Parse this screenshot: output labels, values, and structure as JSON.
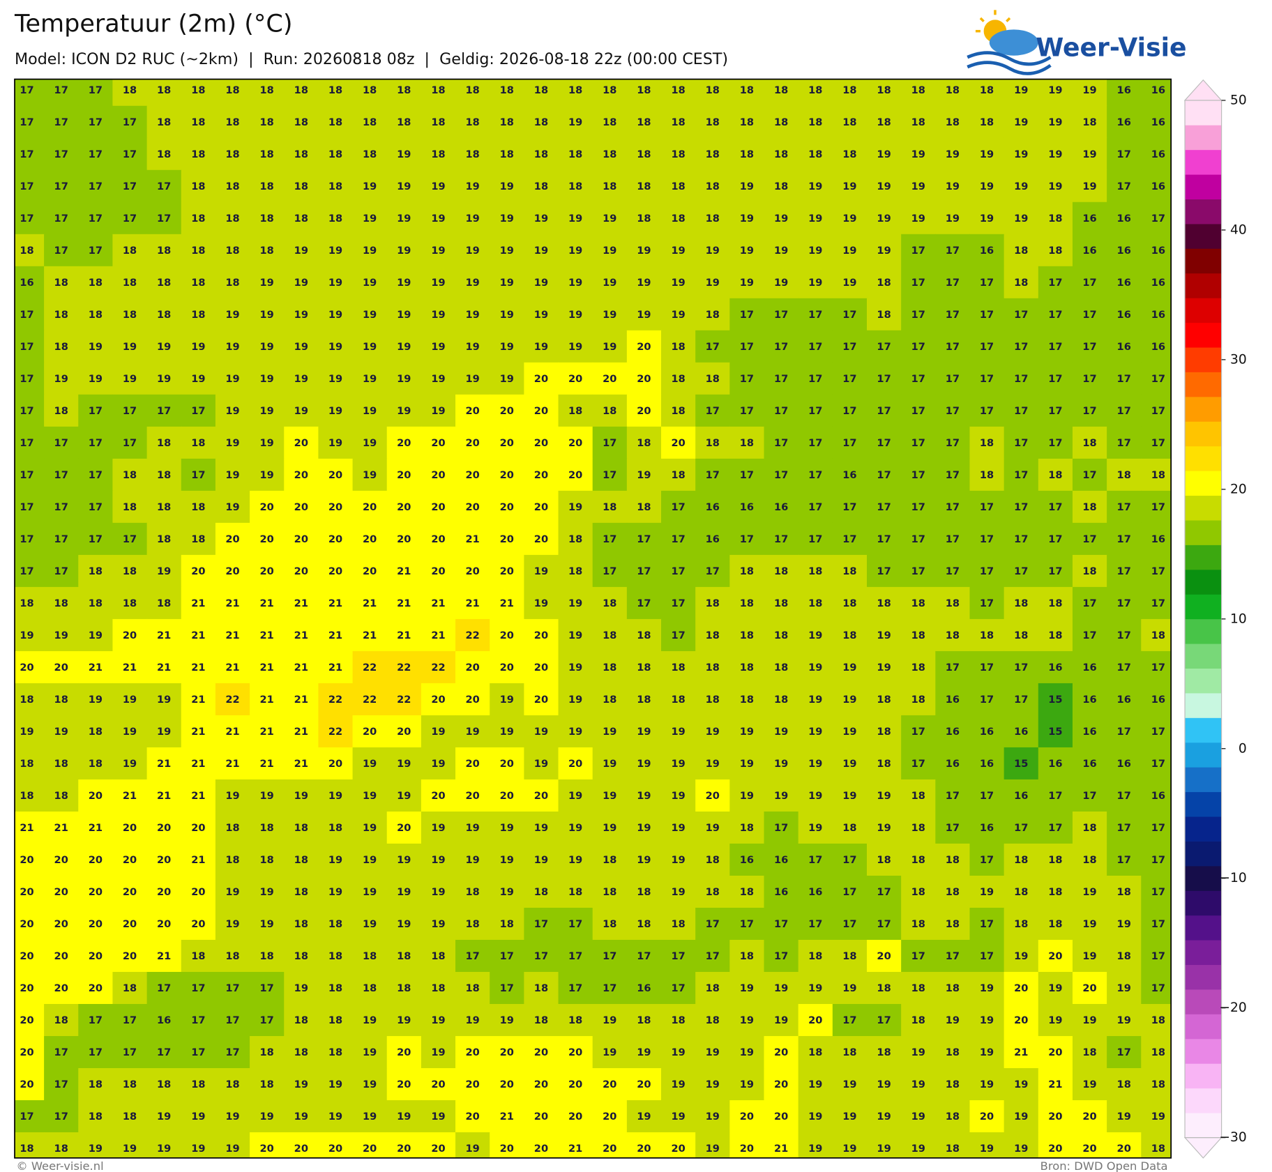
{
  "header": {
    "title": "Temperatuur (2m) (°C)",
    "subtitle": "Model: ICON D2 RUC (~2km)  |  Run: 20260818 08z  |  Geldig: 2026-08-18 22z (00:00 CEST)"
  },
  "logo": "Weer-Visie",
  "grid": {
    "rows": [
      [
        17,
        17,
        17,
        18,
        18,
        18,
        18,
        18,
        18,
        18,
        18,
        18,
        18,
        18,
        18,
        18,
        18,
        18,
        18,
        18,
        18,
        18,
        18,
        18,
        18,
        18,
        18,
        18,
        18,
        19,
        19,
        19,
        16,
        16
      ],
      [
        17,
        17,
        17,
        17,
        18,
        18,
        18,
        18,
        18,
        18,
        18,
        18,
        18,
        18,
        18,
        18,
        19,
        18,
        18,
        18,
        18,
        18,
        18,
        18,
        18,
        18,
        18,
        18,
        18,
        19,
        19,
        18,
        16,
        16
      ],
      [
        17,
        17,
        17,
        17,
        18,
        18,
        18,
        18,
        18,
        18,
        18,
        19,
        18,
        18,
        18,
        18,
        18,
        18,
        18,
        18,
        18,
        18,
        18,
        18,
        18,
        19,
        19,
        19,
        19,
        19,
        19,
        19,
        17,
        16
      ],
      [
        17,
        17,
        17,
        17,
        17,
        18,
        18,
        18,
        18,
        18,
        19,
        19,
        19,
        19,
        19,
        18,
        18,
        18,
        18,
        18,
        18,
        19,
        18,
        19,
        19,
        19,
        19,
        19,
        19,
        19,
        19,
        19,
        17,
        16
      ],
      [
        17,
        17,
        17,
        17,
        17,
        18,
        18,
        18,
        18,
        18,
        19,
        19,
        19,
        19,
        19,
        19,
        19,
        19,
        18,
        18,
        18,
        19,
        19,
        19,
        19,
        19,
        19,
        19,
        19,
        19,
        18,
        16,
        16,
        17
      ],
      [
        18,
        17,
        17,
        18,
        18,
        18,
        18,
        18,
        19,
        19,
        19,
        19,
        19,
        19,
        19,
        19,
        19,
        19,
        19,
        19,
        19,
        19,
        19,
        19,
        19,
        19,
        17,
        17,
        16,
        18,
        18,
        16,
        16,
        16
      ],
      [
        16,
        18,
        18,
        18,
        18,
        18,
        18,
        19,
        19,
        19,
        19,
        19,
        19,
        19,
        19,
        19,
        19,
        19,
        19,
        19,
        19,
        19,
        19,
        19,
        19,
        18,
        17,
        17,
        17,
        18,
        17,
        17,
        16,
        16
      ],
      [
        17,
        18,
        18,
        18,
        18,
        18,
        19,
        19,
        19,
        19,
        19,
        19,
        19,
        19,
        19,
        19,
        19,
        19,
        19,
        19,
        18,
        17,
        17,
        17,
        17,
        18,
        17,
        17,
        17,
        17,
        17,
        17,
        16,
        16
      ],
      [
        17,
        18,
        19,
        19,
        19,
        19,
        19,
        19,
        19,
        19,
        19,
        19,
        19,
        19,
        19,
        19,
        19,
        19,
        20,
        18,
        17,
        17,
        17,
        17,
        17,
        17,
        17,
        17,
        17,
        17,
        17,
        17,
        16,
        16
      ],
      [
        17,
        19,
        19,
        19,
        19,
        19,
        19,
        19,
        19,
        19,
        19,
        19,
        19,
        19,
        19,
        20,
        20,
        20,
        20,
        18,
        18,
        17,
        17,
        17,
        17,
        17,
        17,
        17,
        17,
        17,
        17,
        17,
        17,
        17
      ],
      [
        17,
        18,
        17,
        17,
        17,
        17,
        19,
        19,
        19,
        19,
        19,
        19,
        19,
        20,
        20,
        20,
        18,
        18,
        20,
        18,
        17,
        17,
        17,
        17,
        17,
        17,
        17,
        17,
        17,
        17,
        17,
        17,
        17,
        17
      ],
      [
        17,
        17,
        17,
        17,
        18,
        18,
        19,
        19,
        20,
        19,
        19,
        20,
        20,
        20,
        20,
        20,
        20,
        17,
        18,
        20,
        18,
        18,
        17,
        17,
        17,
        17,
        17,
        17,
        18,
        17,
        17,
        18,
        17,
        17
      ],
      [
        17,
        17,
        17,
        18,
        18,
        17,
        19,
        19,
        20,
        20,
        19,
        20,
        20,
        20,
        20,
        20,
        20,
        17,
        19,
        18,
        17,
        17,
        17,
        17,
        16,
        17,
        17,
        17,
        18,
        17,
        18,
        17,
        18,
        18
      ],
      [
        17,
        17,
        17,
        18,
        18,
        18,
        19,
        20,
        20,
        20,
        20,
        20,
        20,
        20,
        20,
        20,
        19,
        18,
        18,
        17,
        16,
        16,
        16,
        17,
        17,
        17,
        17,
        17,
        17,
        17,
        17,
        18,
        17,
        17
      ],
      [
        17,
        17,
        17,
        17,
        18,
        18,
        20,
        20,
        20,
        20,
        20,
        20,
        20,
        21,
        20,
        20,
        18,
        17,
        17,
        17,
        16,
        17,
        17,
        17,
        17,
        17,
        17,
        17,
        17,
        17,
        17,
        17,
        17,
        16
      ],
      [
        17,
        17,
        18,
        18,
        19,
        20,
        20,
        20,
        20,
        20,
        20,
        21,
        20,
        20,
        20,
        19,
        18,
        17,
        17,
        17,
        17,
        18,
        18,
        18,
        18,
        17,
        17,
        17,
        17,
        17,
        17,
        18,
        17,
        17
      ],
      [
        18,
        18,
        18,
        18,
        18,
        21,
        21,
        21,
        21,
        21,
        21,
        21,
        21,
        21,
        21,
        19,
        19,
        18,
        17,
        17,
        18,
        18,
        18,
        18,
        18,
        18,
        18,
        18,
        17,
        18,
        18,
        17,
        17,
        17
      ],
      [
        19,
        19,
        19,
        20,
        21,
        21,
        21,
        21,
        21,
        21,
        21,
        21,
        21,
        22,
        20,
        20,
        19,
        18,
        18,
        17,
        18,
        18,
        18,
        19,
        18,
        19,
        18,
        18,
        18,
        18,
        18,
        17,
        17,
        18
      ],
      [
        20,
        20,
        21,
        21,
        21,
        21,
        21,
        21,
        21,
        21,
        22,
        22,
        22,
        20,
        20,
        20,
        19,
        18,
        18,
        18,
        18,
        18,
        18,
        19,
        19,
        19,
        18,
        17,
        17,
        17,
        16,
        16,
        17,
        17
      ],
      [
        18,
        18,
        19,
        19,
        19,
        21,
        22,
        21,
        21,
        22,
        22,
        22,
        20,
        20,
        19,
        20,
        19,
        18,
        18,
        18,
        18,
        18,
        18,
        19,
        19,
        18,
        18,
        16,
        17,
        17,
        15,
        16,
        16,
        16
      ],
      [
        19,
        19,
        18,
        19,
        19,
        21,
        21,
        21,
        21,
        22,
        20,
        20,
        19,
        19,
        19,
        19,
        19,
        19,
        19,
        19,
        19,
        19,
        19,
        19,
        19,
        18,
        17,
        16,
        16,
        16,
        15,
        16,
        17,
        17
      ],
      [
        18,
        18,
        18,
        19,
        21,
        21,
        21,
        21,
        21,
        20,
        19,
        19,
        19,
        20,
        20,
        19,
        20,
        19,
        19,
        19,
        19,
        19,
        19,
        19,
        19,
        18,
        17,
        16,
        16,
        15,
        16,
        16,
        16,
        17
      ],
      [
        18,
        18,
        20,
        21,
        21,
        21,
        19,
        19,
        19,
        19,
        19,
        19,
        20,
        20,
        20,
        20,
        19,
        19,
        19,
        19,
        20,
        19,
        19,
        19,
        19,
        19,
        18,
        17,
        17,
        16,
        17,
        17,
        17,
        16
      ],
      [
        21,
        21,
        21,
        20,
        20,
        20,
        18,
        18,
        18,
        18,
        19,
        20,
        19,
        19,
        19,
        19,
        19,
        19,
        19,
        19,
        19,
        18,
        17,
        19,
        18,
        19,
        18,
        17,
        16,
        17,
        17,
        18,
        17,
        17
      ],
      [
        20,
        20,
        20,
        20,
        20,
        21,
        18,
        18,
        18,
        19,
        19,
        19,
        19,
        19,
        19,
        19,
        19,
        18,
        19,
        19,
        18,
        16,
        16,
        17,
        17,
        18,
        18,
        18,
        17,
        18,
        18,
        18,
        17,
        17
      ],
      [
        20,
        20,
        20,
        20,
        20,
        20,
        19,
        19,
        18,
        19,
        19,
        19,
        19,
        18,
        19,
        18,
        18,
        18,
        18,
        19,
        18,
        18,
        16,
        16,
        17,
        17,
        18,
        18,
        19,
        18,
        18,
        19,
        18,
        17
      ],
      [
        20,
        20,
        20,
        20,
        20,
        20,
        19,
        19,
        18,
        18,
        19,
        19,
        19,
        18,
        18,
        17,
        17,
        18,
        18,
        18,
        17,
        17,
        17,
        17,
        17,
        17,
        18,
        18,
        17,
        18,
        18,
        19,
        19,
        17
      ],
      [
        20,
        20,
        20,
        20,
        21,
        18,
        18,
        18,
        18,
        18,
        18,
        18,
        18,
        17,
        17,
        17,
        17,
        17,
        17,
        17,
        17,
        18,
        17,
        18,
        18,
        20,
        17,
        17,
        17,
        19,
        20,
        19,
        18,
        17
      ],
      [
        20,
        20,
        20,
        18,
        17,
        17,
        17,
        17,
        19,
        18,
        18,
        18,
        18,
        18,
        17,
        18,
        17,
        17,
        16,
        17,
        18,
        19,
        19,
        19,
        19,
        18,
        18,
        18,
        19,
        20,
        19,
        20,
        19,
        17
      ],
      [
        20,
        18,
        17,
        17,
        16,
        17,
        17,
        17,
        18,
        18,
        19,
        19,
        19,
        19,
        19,
        18,
        18,
        19,
        18,
        18,
        18,
        19,
        19,
        20,
        17,
        17,
        18,
        19,
        19,
        20,
        19,
        19,
        19,
        18
      ],
      [
        20,
        17,
        17,
        17,
        17,
        17,
        17,
        18,
        18,
        18,
        19,
        20,
        19,
        20,
        20,
        20,
        20,
        19,
        19,
        19,
        19,
        19,
        20,
        18,
        18,
        18,
        19,
        18,
        19,
        21,
        20,
        18,
        17,
        18
      ],
      [
        20,
        17,
        18,
        18,
        18,
        18,
        18,
        18,
        19,
        19,
        19,
        20,
        20,
        20,
        20,
        20,
        20,
        20,
        20,
        19,
        19,
        19,
        20,
        19,
        19,
        19,
        19,
        18,
        19,
        19,
        21,
        19,
        18,
        18
      ],
      [
        17,
        17,
        18,
        18,
        19,
        19,
        19,
        19,
        19,
        19,
        19,
        19,
        19,
        20,
        21,
        20,
        20,
        20,
        19,
        19,
        19,
        20,
        20,
        19,
        19,
        19,
        19,
        18,
        20,
        19,
        20,
        20,
        19,
        19
      ],
      [
        18,
        18,
        19,
        19,
        19,
        19,
        19,
        20,
        20,
        20,
        20,
        20,
        20,
        19,
        20,
        20,
        21,
        20,
        20,
        20,
        19,
        20,
        21,
        19,
        19,
        19,
        19,
        18,
        19,
        19,
        20,
        20,
        20,
        18
      ]
    ]
  },
  "colorbar": {
    "lim": [
      -30,
      50
    ],
    "ticks": [
      {
        "value": -30,
        "label": "−30"
      },
      {
        "value": -20,
        "label": "−20"
      },
      {
        "value": -10,
        "label": "−10"
      },
      0,
      10,
      20,
      30,
      40,
      50
    ],
    "colors": [
      "#fdeefd",
      "#fcd8fb",
      "#f8b4f4",
      "#e987e6",
      "#d466d4",
      "#b94ab9",
      "#9932a8",
      "#7a1e9a",
      "#54118a",
      "#2e0b6a",
      "#160d4a",
      "#0a1a70",
      "#06248c",
      "#0543a8",
      "#1670c8",
      "#1aa0e0",
      "#30c3f5",
      "#c8f7e0",
      "#a0eaa4",
      "#78d878",
      "#48c448",
      "#10b020",
      "#0a9010",
      "#3ca810",
      "#90c800",
      "#c8dc00",
      "#ffff00",
      "#ffe000",
      "#ffc400",
      "#ff9c00",
      "#ff6a00",
      "#ff3c00",
      "#ff0000",
      "#dd0000",
      "#b00000",
      "#800000",
      "#500030",
      "#8a0a6a",
      "#c000a0",
      "#f040d0",
      "#f8a0d8",
      "#ffe0f4"
    ]
  },
  "footer": {
    "left": "© Weer-visie.nl",
    "right": "Bron: DWD Open Data"
  }
}
